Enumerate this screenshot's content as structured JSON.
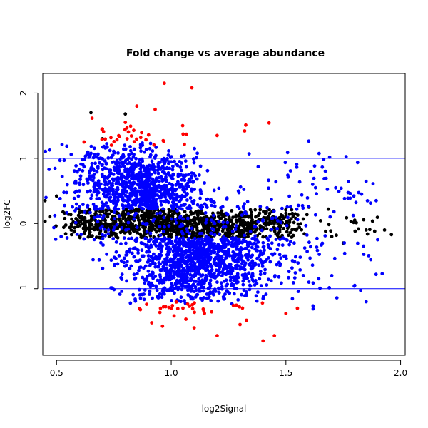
{
  "chart_data": {
    "type": "scatter",
    "title": "Fold change vs average abundance",
    "xlabel": "log2Signal",
    "ylabel": "log2FC",
    "xlim": [
      0.44,
      2.02
    ],
    "ylim": [
      -2.02,
      2.3
    ],
    "xticks": [
      "0.5",
      "1.0",
      "1.5",
      "2.0"
    ],
    "yticks": [
      "2",
      "1",
      "0",
      "-1"
    ],
    "xtick_values": [
      0.5,
      1.0,
      1.5,
      2.0
    ],
    "ytick_values": [
      2,
      1,
      0,
      -1
    ],
    "hlines": [
      1,
      -1
    ],
    "hline_color": "#0000ff",
    "grid": false,
    "legend": "none",
    "colors": {
      "not_significant": "#000000",
      "significant": "#0000ff",
      "significant_large_fc": "#ff0000"
    },
    "series_summary": [
      {
        "color": "#000000",
        "description_points": [
          [
            0.45,
            0.35
          ],
          [
            0.5,
            0.42
          ],
          [
            0.6,
            0.1
          ],
          [
            0.65,
            1.7
          ],
          [
            0.7,
            1.3
          ],
          [
            0.8,
            1.68
          ],
          [
            1.0,
            0.0
          ],
          [
            1.2,
            0.0
          ],
          [
            1.5,
            0.1
          ],
          [
            1.6,
            0.25
          ],
          [
            1.7,
            -0.2
          ],
          [
            1.75,
            -0.3
          ],
          [
            1.8,
            0.05
          ],
          [
            1.85,
            -0.1
          ],
          [
            1.93,
            -0.1
          ],
          [
            1.96,
            -0.17
          ]
        ]
      },
      {
        "color": "#0000ff",
        "description_points": [
          [
            0.52,
            -0.2
          ],
          [
            0.6,
            0.5
          ],
          [
            0.7,
            0.9
          ],
          [
            0.8,
            0.7
          ],
          [
            0.9,
            0.8
          ],
          [
            1.0,
            0.6
          ],
          [
            1.1,
            -0.8
          ],
          [
            1.2,
            -0.9
          ],
          [
            1.3,
            -0.7
          ],
          [
            1.4,
            -0.6
          ],
          [
            1.5,
            -0.5
          ],
          [
            1.6,
            -0.9
          ],
          [
            1.7,
            -0.8
          ],
          [
            1.8,
            -0.95
          ],
          [
            1.85,
            -1.2
          ],
          [
            1.83,
            0.45
          ],
          [
            1.92,
            -0.77
          ]
        ]
      },
      {
        "color": "#ff0000",
        "description_points": [
          [
            0.62,
            1.25
          ],
          [
            0.7,
            1.45
          ],
          [
            0.8,
            1.55
          ],
          [
            0.85,
            1.8
          ],
          [
            0.93,
            1.75
          ],
          [
            0.97,
            2.15
          ],
          [
            1.05,
            1.5
          ],
          [
            1.09,
            2.08
          ],
          [
            1.2,
            1.35
          ],
          [
            1.32,
            1.42
          ],
          [
            1.0,
            -1.3
          ],
          [
            1.1,
            -1.6
          ],
          [
            1.2,
            -1.72
          ],
          [
            1.3,
            -1.55
          ],
          [
            1.4,
            -1.8
          ],
          [
            1.45,
            -1.72
          ],
          [
            1.5,
            -1.38
          ],
          [
            1.55,
            -1.3
          ]
        ]
      }
    ]
  }
}
